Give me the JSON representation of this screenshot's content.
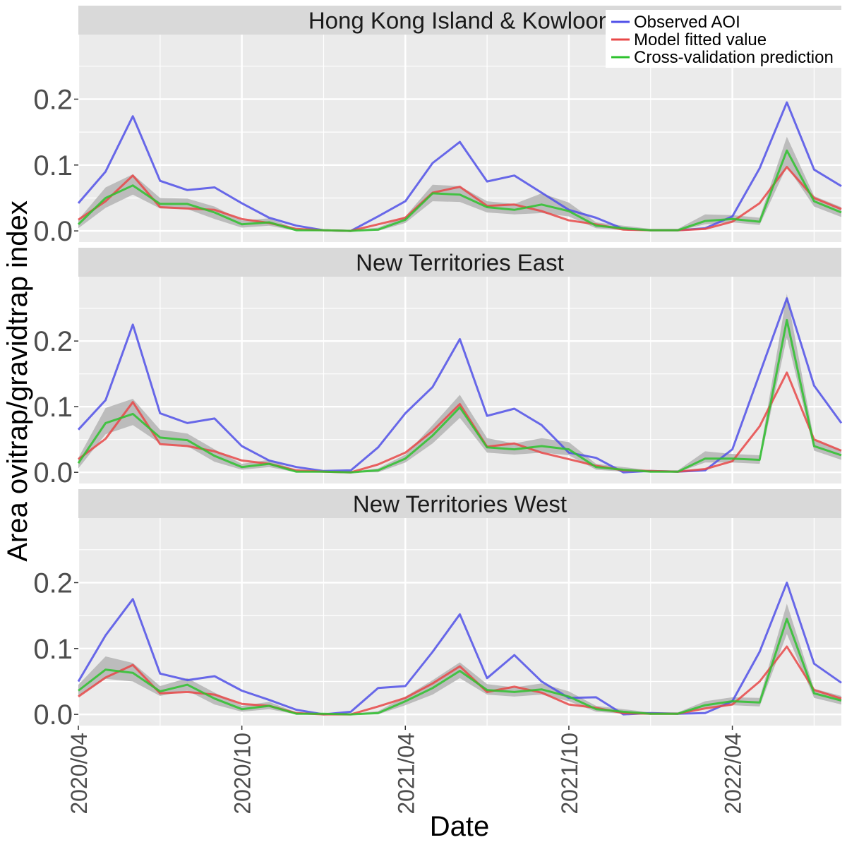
{
  "chart_data": {
    "type": "line",
    "xlabel": "Date",
    "ylabel": "Area ovitrap/gravidtrap index",
    "x_ticks": [
      "2020/04",
      "2020/10",
      "2021/04",
      "2021/10",
      "2022/04"
    ],
    "y_ticks": [
      "0.0",
      "0.1",
      "0.2"
    ],
    "ylim": [
      -0.017,
      0.298
    ],
    "x": [
      "2020/04",
      "2020/05",
      "2020/06",
      "2020/07",
      "2020/08",
      "2020/09",
      "2020/10",
      "2020/11",
      "2020/12",
      "2021/01",
      "2021/02",
      "2021/03",
      "2021/04",
      "2021/05",
      "2021/06",
      "2021/07",
      "2021/08",
      "2021/09",
      "2021/10",
      "2021/11",
      "2021/12",
      "2022/01",
      "2022/02",
      "2022/03",
      "2022/04",
      "2022/05",
      "2022/06",
      "2022/07",
      "2022/08"
    ],
    "legend_position": "top-right",
    "legend": [
      {
        "key": "observed",
        "label": "Observed AOI",
        "color": "#5050e8"
      },
      {
        "key": "fitted",
        "label": "Model fitted value",
        "color": "#e84848"
      },
      {
        "key": "cv",
        "label": "Cross-validation prediction",
        "color": "#2ec22e"
      }
    ],
    "band_color": "#b4b4b4",
    "panels": [
      {
        "title": "Hong Kong Island & Kowloon",
        "observed": [
          0.042,
          0.09,
          0.174,
          0.076,
          0.062,
          0.066,
          0.042,
          0.02,
          0.008,
          0.001,
          0.0,
          0.022,
          0.045,
          0.103,
          0.135,
          0.075,
          0.084,
          0.058,
          0.032,
          0.02,
          0.003,
          0.001,
          0.001,
          0.004,
          0.022,
          0.095,
          0.195,
          0.093,
          0.068
        ],
        "fitted": [
          0.017,
          0.045,
          0.084,
          0.036,
          0.034,
          0.032,
          0.018,
          0.012,
          0.003,
          0.001,
          0.0,
          0.01,
          0.02,
          0.058,
          0.067,
          0.038,
          0.04,
          0.03,
          0.016,
          0.01,
          0.002,
          0.001,
          0.001,
          0.003,
          0.014,
          0.042,
          0.097,
          0.05,
          0.033
        ],
        "cv": [
          0.01,
          0.05,
          0.069,
          0.041,
          0.041,
          0.028,
          0.01,
          0.013,
          0.001,
          0.001,
          0.0,
          0.002,
          0.017,
          0.057,
          0.055,
          0.036,
          0.032,
          0.04,
          0.03,
          0.008,
          0.004,
          0.001,
          0.001,
          0.015,
          0.018,
          0.014,
          0.122,
          0.045,
          0.028
        ],
        "cv_low": [
          0.004,
          0.035,
          0.055,
          0.034,
          0.033,
          0.018,
          0.005,
          0.008,
          0.0,
          0.0,
          0.0,
          0.0,
          0.012,
          0.045,
          0.044,
          0.028,
          0.025,
          0.027,
          0.022,
          0.004,
          0.001,
          0.0,
          0.0,
          0.01,
          0.013,
          0.009,
          0.098,
          0.037,
          0.021
        ],
        "cv_high": [
          0.017,
          0.066,
          0.086,
          0.05,
          0.049,
          0.037,
          0.016,
          0.019,
          0.003,
          0.002,
          0.001,
          0.005,
          0.022,
          0.07,
          0.068,
          0.045,
          0.041,
          0.057,
          0.043,
          0.013,
          0.008,
          0.003,
          0.003,
          0.025,
          0.024,
          0.02,
          0.143,
          0.053,
          0.036
        ]
      },
      {
        "title": "New Territories East",
        "observed": [
          0.065,
          0.11,
          0.225,
          0.09,
          0.075,
          0.082,
          0.04,
          0.018,
          0.008,
          0.002,
          0.003,
          0.038,
          0.09,
          0.13,
          0.203,
          0.086,
          0.097,
          0.072,
          0.03,
          0.022,
          0.0,
          0.002,
          0.001,
          0.003,
          0.035,
          0.15,
          0.265,
          0.132,
          0.075
        ],
        "fitted": [
          0.02,
          0.051,
          0.107,
          0.043,
          0.04,
          0.032,
          0.018,
          0.013,
          0.003,
          0.001,
          0.0,
          0.012,
          0.03,
          0.063,
          0.104,
          0.039,
          0.044,
          0.03,
          0.02,
          0.01,
          0.003,
          0.002,
          0.001,
          0.005,
          0.017,
          0.07,
          0.152,
          0.05,
          0.033
        ],
        "cv": [
          0.014,
          0.075,
          0.089,
          0.053,
          0.049,
          0.025,
          0.008,
          0.013,
          0.001,
          0.001,
          0.0,
          0.003,
          0.021,
          0.056,
          0.099,
          0.038,
          0.035,
          0.04,
          0.035,
          0.008,
          0.004,
          0.001,
          0.001,
          0.021,
          0.021,
          0.019,
          0.232,
          0.04,
          0.026
        ],
        "cv_low": [
          0.006,
          0.058,
          0.072,
          0.044,
          0.04,
          0.016,
          0.004,
          0.008,
          0.0,
          0.0,
          0.0,
          0.0,
          0.015,
          0.044,
          0.083,
          0.03,
          0.027,
          0.03,
          0.026,
          0.004,
          0.001,
          0.0,
          0.0,
          0.015,
          0.015,
          0.013,
          0.205,
          0.033,
          0.019
        ],
        "cv_high": [
          0.022,
          0.098,
          0.112,
          0.065,
          0.059,
          0.035,
          0.013,
          0.019,
          0.003,
          0.002,
          0.001,
          0.006,
          0.027,
          0.072,
          0.118,
          0.052,
          0.044,
          0.052,
          0.046,
          0.013,
          0.008,
          0.003,
          0.003,
          0.032,
          0.028,
          0.026,
          0.272,
          0.049,
          0.034
        ]
      },
      {
        "title": "New Territories West",
        "observed": [
          0.05,
          0.12,
          0.175,
          0.062,
          0.052,
          0.058,
          0.036,
          0.022,
          0.007,
          0.0,
          0.004,
          0.04,
          0.043,
          0.095,
          0.152,
          0.055,
          0.09,
          0.05,
          0.025,
          0.026,
          0.0,
          0.002,
          0.001,
          0.002,
          0.02,
          0.095,
          0.2,
          0.077,
          0.048
        ],
        "fitted": [
          0.027,
          0.056,
          0.075,
          0.032,
          0.034,
          0.03,
          0.016,
          0.013,
          0.002,
          0.0,
          0.0,
          0.012,
          0.025,
          0.047,
          0.073,
          0.034,
          0.042,
          0.033,
          0.015,
          0.01,
          0.002,
          0.001,
          0.001,
          0.009,
          0.015,
          0.05,
          0.103,
          0.037,
          0.024
        ],
        "cv": [
          0.036,
          0.068,
          0.063,
          0.035,
          0.045,
          0.024,
          0.008,
          0.013,
          0.001,
          0.001,
          0.0,
          0.002,
          0.02,
          0.04,
          0.066,
          0.037,
          0.034,
          0.038,
          0.027,
          0.008,
          0.004,
          0.001,
          0.001,
          0.014,
          0.02,
          0.018,
          0.145,
          0.032,
          0.021
        ],
        "cv_low": [
          0.028,
          0.054,
          0.05,
          0.028,
          0.036,
          0.015,
          0.004,
          0.008,
          0.0,
          0.0,
          0.0,
          0.0,
          0.014,
          0.03,
          0.055,
          0.03,
          0.027,
          0.03,
          0.02,
          0.004,
          0.001,
          0.0,
          0.0,
          0.01,
          0.014,
          0.012,
          0.122,
          0.025,
          0.015
        ],
        "cv_high": [
          0.045,
          0.088,
          0.078,
          0.043,
          0.055,
          0.033,
          0.013,
          0.019,
          0.003,
          0.002,
          0.001,
          0.005,
          0.027,
          0.052,
          0.079,
          0.046,
          0.041,
          0.047,
          0.035,
          0.013,
          0.008,
          0.003,
          0.003,
          0.02,
          0.026,
          0.025,
          0.168,
          0.039,
          0.028
        ]
      }
    ]
  }
}
